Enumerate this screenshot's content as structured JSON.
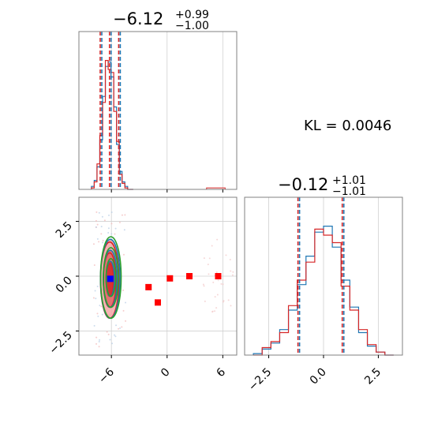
{
  "chart_data": [
    {
      "type": "histogram",
      "panel": "marginal-x",
      "title": {
        "value": "−6.12",
        "upper": "+0.99",
        "lower": "−1.00"
      },
      "xlim": [
        -9.5,
        7.5
      ],
      "quantile_lines": [
        -7.12,
        -6.12,
        -5.13
      ],
      "colors": {
        "blue": "#1f77b4",
        "red": "#d62728",
        "quantile_blue": "#1f77b4",
        "quantile_red": "#d62728"
      },
      "series": [
        {
          "name": "",
          "color": "#1f77b4",
          "x": [
            -8.0,
            -7.7,
            -7.4,
            -7.1,
            -6.8,
            -6.5,
            -6.2,
            -5.9,
            -5.6,
            -5.3,
            -5.0,
            -4.7,
            -4.4,
            -4.1,
            -3.8
          ],
          "y": [
            0.02,
            0.06,
            0.15,
            0.33,
            0.62,
            0.82,
            0.85,
            0.75,
            0.55,
            0.3,
            0.12,
            0.05,
            0.02,
            0.0,
            0.0
          ]
        },
        {
          "name": "",
          "color": "#d62728",
          "x": [
            -8.0,
            -7.7,
            -7.4,
            -7.1,
            -6.8,
            -6.5,
            -6.2,
            -5.9,
            -5.6,
            -5.3,
            -5.0,
            -4.7,
            -4.4,
            -4.1,
            -3.8
          ],
          "y": [
            0.01,
            0.05,
            0.17,
            0.36,
            0.58,
            0.86,
            0.8,
            0.78,
            0.52,
            0.32,
            0.1,
            0.04,
            0.01,
            0.0,
            0.0
          ]
        }
      ],
      "tail": {
        "x": [
          4.0,
          4.5,
          5.0,
          5.5,
          6.0,
          6.5
        ],
        "y": [
          0.0,
          0.01,
          0.01,
          0.01,
          0.01,
          0.0
        ]
      }
    },
    {
      "type": "scatter",
      "panel": "joint",
      "xlim": [
        -9.5,
        7.5
      ],
      "ylim": [
        -3.6,
        3.6
      ],
      "xticks": [
        -6,
        0,
        6
      ],
      "xtick_labels": [
        "−6",
        "0",
        "6"
      ],
      "yticks": [
        -2.5,
        0.0,
        2.5
      ],
      "ytick_labels": [
        "−2.5",
        "0.0",
        "2.5"
      ],
      "contours": {
        "center": [
          -6.12,
          -0.12
        ],
        "levels": [
          {
            "sx": 1.05,
            "sy": 1.8,
            "color": "#d62728",
            "fill": "#f4a7a7"
          },
          {
            "sx": 0.75,
            "sy": 1.3,
            "color": "#1f77b4",
            "fill": "#e06666"
          },
          {
            "sx": 0.45,
            "sy": 0.8,
            "color": "#2ca02c",
            "fill": "#d62728"
          }
        ]
      },
      "markers": [
        {
          "x": -6.12,
          "y": -0.12,
          "color": "#0000ff"
        },
        {
          "x": -2.0,
          "y": -0.5,
          "color": "#ff0000"
        },
        {
          "x": -1.0,
          "y": -1.2,
          "color": "#ff0000"
        },
        {
          "x": 0.3,
          "y": -0.1,
          "color": "#ff0000"
        },
        {
          "x": 2.4,
          "y": 0.0,
          "color": "#ff0000"
        },
        {
          "x": 5.5,
          "y": 0.0,
          "color": "#ff0000"
        }
      ]
    },
    {
      "type": "histogram",
      "panel": "marginal-y",
      "title": {
        "value": "−0.12",
        "upper": "+1.01",
        "lower": "−1.01"
      },
      "xlim": [
        -3.6,
        3.6
      ],
      "xticks": [
        -2.5,
        0.0,
        2.5
      ],
      "xtick_labels": [
        "−2.5",
        "0.0",
        "2.5"
      ],
      "quantile_lines": [
        -1.13,
        0.89
      ],
      "series": [
        {
          "name": "",
          "color": "#1f77b4",
          "x": [
            -3.0,
            -2.6,
            -2.2,
            -1.8,
            -1.4,
            -1.0,
            -0.6,
            -0.2,
            0.2,
            0.6,
            1.0,
            1.4,
            1.8,
            2.2,
            2.6,
            3.0
          ],
          "y": [
            0.01,
            0.04,
            0.08,
            0.17,
            0.3,
            0.47,
            0.66,
            0.82,
            0.86,
            0.72,
            0.5,
            0.32,
            0.15,
            0.06,
            0.02,
            0.0
          ]
        },
        {
          "name": "",
          "color": "#d62728",
          "x": [
            -3.0,
            -2.6,
            -2.2,
            -1.8,
            -1.4,
            -1.0,
            -0.6,
            -0.2,
            0.2,
            0.6,
            1.0,
            1.4,
            1.8,
            2.2,
            2.6,
            3.0
          ],
          "y": [
            0.0,
            0.05,
            0.09,
            0.15,
            0.33,
            0.5,
            0.62,
            0.84,
            0.8,
            0.75,
            0.46,
            0.3,
            0.17,
            0.07,
            0.02,
            0.0
          ]
        }
      ]
    }
  ],
  "annotation": {
    "kl_text": "KL = 0.0046"
  }
}
